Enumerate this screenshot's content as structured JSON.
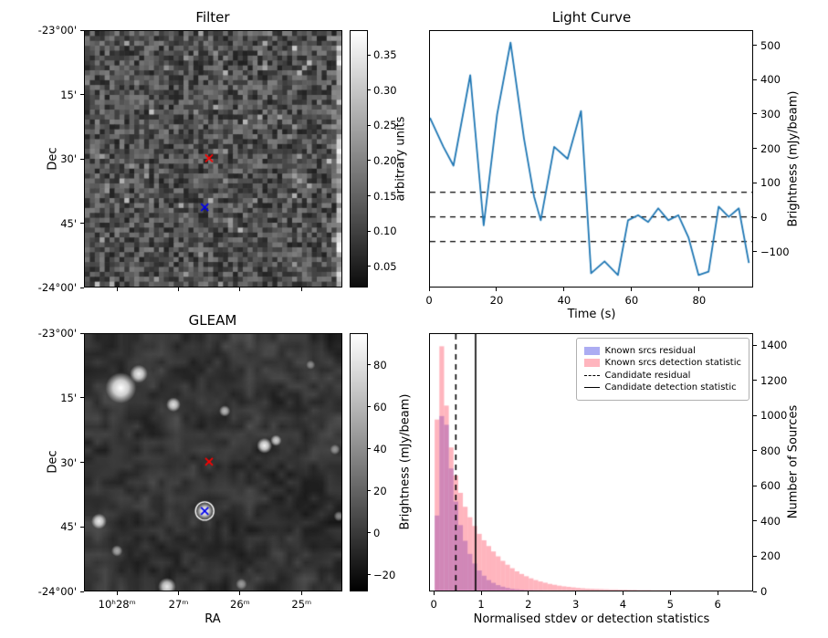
{
  "figure": {
    "background": "#ffffff"
  },
  "chart_data": [
    {
      "id": "filter",
      "type": "heatmap",
      "title": "Filter",
      "ylabel": "Dec",
      "yticks": {
        "labels": [
          "-23°00'",
          "15'",
          "30'",
          "45'",
          "-24°00'"
        ],
        "fractions": [
          0,
          0.25,
          0.5,
          0.75,
          1
        ]
      },
      "xticks": {
        "labels": [],
        "fractions": [
          0.128,
          0.366,
          0.604,
          0.842
        ]
      },
      "colorbar": {
        "label": "arbitrary units",
        "vmin": 0.02,
        "vmax": 0.385,
        "tick_values": [
          0.35,
          0.3,
          0.25,
          0.2,
          0.15,
          0.1,
          0.05
        ],
        "tick_labels": [
          "0.35",
          "0.30",
          "0.25",
          "0.20",
          "0.15",
          "0.10",
          "0.05"
        ]
      },
      "markers": [
        {
          "name": "candidate-position-marker",
          "symbol": "x",
          "color": "#ff0000",
          "fx": 0.484,
          "fy": 0.498
        },
        {
          "name": "known-source-position-marker",
          "symbol": "x",
          "color": "#0000ee",
          "fx": 0.467,
          "fy": 0.69
        }
      ],
      "image_description": "grainy grayscale noise map, brighter strip along right edge"
    },
    {
      "id": "light-curve",
      "type": "line",
      "title": "Light Curve",
      "xlabel": "Time (s)",
      "ylabel": "Brightness (mJy/beam)",
      "line_color": "#1f77b4",
      "x": [
        0,
        4,
        7,
        12,
        16,
        20,
        24,
        28,
        31,
        33,
        37,
        41,
        45,
        48,
        52,
        56,
        59,
        62,
        65,
        68,
        71,
        74,
        77,
        80,
        83,
        86,
        89,
        92,
        95
      ],
      "y": [
        290,
        205,
        150,
        415,
        -25,
        300,
        510,
        230,
        60,
        -10,
        205,
        170,
        310,
        -165,
        -130,
        -170,
        -10,
        5,
        -15,
        25,
        -10,
        5,
        -60,
        -170,
        -160,
        30,
        0,
        25,
        -135
      ],
      "hlines": {
        "values": [
          72,
          0,
          -72
        ],
        "style": "dashed",
        "color": "#000000"
      },
      "xlim": [
        0,
        96
      ],
      "ylim": [
        -204,
        544
      ],
      "xticks": {
        "values": [
          0,
          20,
          40,
          60,
          80
        ],
        "labels": [
          "0",
          "20",
          "40",
          "60",
          "80"
        ]
      },
      "yticks": {
        "values": [
          500,
          400,
          300,
          200,
          100,
          0,
          -100
        ],
        "labels": [
          "500",
          "400",
          "300",
          "200",
          "100",
          "0",
          "−100"
        ]
      }
    },
    {
      "id": "gleam",
      "type": "heatmap",
      "title": "GLEAM",
      "xlabel": "RA",
      "ylabel": "Dec",
      "xticks": {
        "labels": [
          "10ʰ28ᵐ",
          "27ᵐ",
          "26ᵐ",
          "25ᵐ"
        ],
        "fractions": [
          0.128,
          0.366,
          0.604,
          0.842
        ]
      },
      "yticks": {
        "labels": [
          "-23°00'",
          "15'",
          "30'",
          "45'",
          "-24°00'"
        ],
        "fractions": [
          0,
          0.25,
          0.5,
          0.75,
          1
        ]
      },
      "colorbar": {
        "label": "Brightness (mJy/beam)",
        "vmin": -28,
        "vmax": 95,
        "tick_values": [
          80,
          60,
          40,
          20,
          0,
          -20
        ],
        "tick_labels": [
          "80",
          "60",
          "40",
          "20",
          "0",
          "−20"
        ]
      },
      "markers": [
        {
          "name": "candidate-position-marker",
          "symbol": "x",
          "color": "#ff0000",
          "fx": 0.484,
          "fy": 0.498
        },
        {
          "name": "known-source-position-marker",
          "symbol": "x",
          "color": "#0000ee",
          "fx": 0.467,
          "fy": 0.69,
          "ring": true
        }
      ],
      "blobs": [
        [
          0.14,
          0.21,
          0.06,
          1
        ],
        [
          0.21,
          0.155,
          0.035,
          0.9
        ],
        [
          0.345,
          0.275,
          0.028,
          0.85
        ],
        [
          0.545,
          0.3,
          0.022,
          0.7
        ],
        [
          0.7,
          0.435,
          0.03,
          0.95
        ],
        [
          0.745,
          0.415,
          0.022,
          0.8
        ],
        [
          0.467,
          0.69,
          0.034,
          1
        ],
        [
          0.055,
          0.73,
          0.03,
          0.9
        ],
        [
          0.125,
          0.845,
          0.022,
          0.6
        ],
        [
          0.32,
          0.985,
          0.035,
          0.9
        ],
        [
          0.61,
          0.975,
          0.022,
          0.5
        ],
        [
          0.975,
          0.45,
          0.02,
          0.5
        ],
        [
          0.88,
          0.12,
          0.018,
          0.45
        ],
        [
          0.99,
          0.71,
          0.02,
          0.5
        ]
      ],
      "image_description": "smooth grayscale sky image with bright point sources; known source circled in white"
    },
    {
      "id": "histogram",
      "type": "bar",
      "xlabel": "Normalised stdev or detection statistics",
      "ylabel": "Number of Sources",
      "bin_start": 0,
      "bin_width": 0.1,
      "series": [
        {
          "name": "Known srcs residual",
          "color": "rgba(90,90,230,0.5)",
          "values": [
            430,
            1000,
            950,
            700,
            510,
            375,
            285,
            210,
            155,
            115,
            85,
            60,
            44,
            31,
            22,
            15,
            10,
            7,
            5,
            3,
            2,
            1,
            1
          ]
        },
        {
          "name": "Known srcs detection statistic",
          "color": "rgba(255,90,110,0.45)",
          "values": [
            980,
            1400,
            1060,
            820,
            660,
            560,
            480,
            420,
            370,
            325,
            288,
            255,
            224,
            196,
            170,
            148,
            128,
            110,
            95,
            82,
            70,
            60,
            52,
            45,
            38,
            33,
            28,
            24,
            21,
            18,
            15,
            13,
            11,
            10,
            9,
            8,
            7,
            6,
            6,
            5,
            5,
            4,
            4,
            3,
            3,
            3,
            2,
            2,
            2,
            2,
            2,
            1,
            1,
            1,
            1,
            1,
            1,
            1,
            1,
            1,
            1,
            1,
            1,
            1,
            1
          ]
        }
      ],
      "vlines": [
        {
          "label": "Candidate residual",
          "x": 0.45,
          "style": "dashed",
          "color": "#000000"
        },
        {
          "label": "Candidate detection statistic",
          "x": 0.87,
          "style": "solid",
          "color": "#000000"
        }
      ],
      "xlim": [
        -0.1,
        6.75
      ],
      "ylim": [
        0,
        1470
      ],
      "xticks": {
        "values": [
          0,
          1,
          2,
          3,
          4,
          5,
          6
        ],
        "labels": [
          "0",
          "1",
          "2",
          "3",
          "4",
          "5",
          "6"
        ]
      },
      "yticks": {
        "values": [
          0,
          200,
          400,
          600,
          800,
          1000,
          1200,
          1400
        ],
        "labels": [
          "0",
          "200",
          "400",
          "600",
          "800",
          "1000",
          "1200",
          "1400"
        ]
      },
      "legend": [
        "Known srcs residual",
        "Known srcs detection statistic",
        "Candidate residual",
        "Candidate detection statistic"
      ]
    }
  ]
}
